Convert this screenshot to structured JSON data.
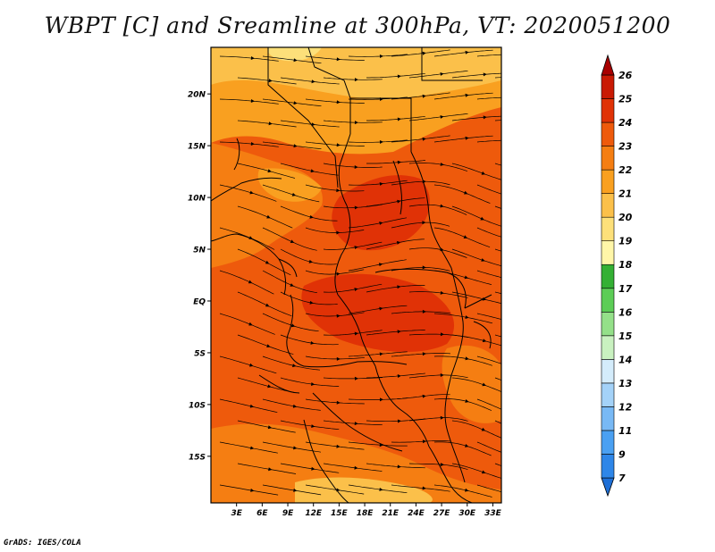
{
  "title": "WBPT [C] and Sreamline at 300hPa, VT: 2020051200",
  "credit": "GrADS: IGES/COLA",
  "map": {
    "lat_range": [
      -19.5,
      24.5
    ],
    "lon_range": [
      0,
      34
    ],
    "lat_ticks": [
      {
        "lat": 20,
        "label": "20N"
      },
      {
        "lat": 15,
        "label": "15N"
      },
      {
        "lat": 10,
        "label": "10N"
      },
      {
        "lat": 5,
        "label": "5N"
      },
      {
        "lat": 0,
        "label": "EQ"
      },
      {
        "lat": -5,
        "label": "5S"
      },
      {
        "lat": -10,
        "label": "10S"
      },
      {
        "lat": -15,
        "label": "15S"
      }
    ],
    "lon_ticks": [
      {
        "lon": 3,
        "label": "3E"
      },
      {
        "lon": 6,
        "label": "6E"
      },
      {
        "lon": 9,
        "label": "9E"
      },
      {
        "lon": 12,
        "label": "12E"
      },
      {
        "lon": 15,
        "label": "15E"
      },
      {
        "lon": 18,
        "label": "18E"
      },
      {
        "lon": 21,
        "label": "21E"
      },
      {
        "lon": 24,
        "label": "24E"
      },
      {
        "lon": 27,
        "label": "27E"
      },
      {
        "lon": 30,
        "label": "30E"
      },
      {
        "lon": 33,
        "label": "33E"
      }
    ]
  },
  "colorbar": {
    "labels": [
      "7",
      "9",
      "11",
      "12",
      "13",
      "14",
      "15",
      "16",
      "17",
      "18",
      "19",
      "20",
      "21",
      "22",
      "23",
      "24",
      "25",
      "26"
    ],
    "colors": [
      "#1e6fd6",
      "#2e86e8",
      "#4aa0f2",
      "#78b9f5",
      "#a4d2f8",
      "#d4ecfb",
      "#c9f1c0",
      "#94e089",
      "#5ccd56",
      "#34b034",
      "#fff6a8",
      "#fde07a",
      "#fbc04a",
      "#f9a020",
      "#f57e12",
      "#ee5a0c",
      "#e03206",
      "#c91a04",
      "#a80000"
    ]
  }
}
